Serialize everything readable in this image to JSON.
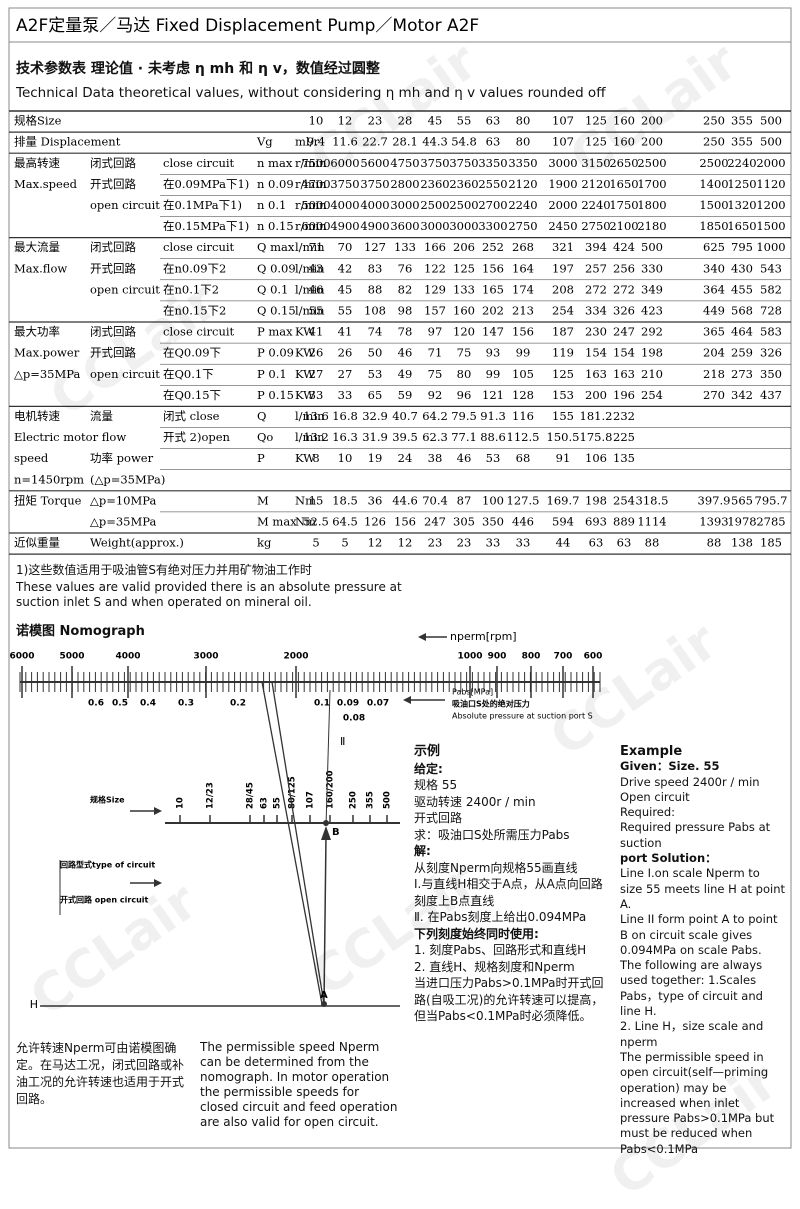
{
  "header": {
    "title": "A2F定量泵／马达  Fixed Displacement Pump／Motor A2F"
  },
  "intro": {
    "title_cn": "技术参数表  理论值 · 未考虑 η mh 和 η v，数值经过圆整",
    "title_en": "Technical Data theoretical values, without considering η mh and η v values rounded off"
  },
  "table": {
    "rows": [
      {
        "label": "规格Size",
        "values": [
          "10",
          "12",
          "23",
          "28",
          "45",
          "55",
          "63",
          "80",
          "107",
          "125",
          "160",
          "200",
          "250",
          "355",
          "500"
        ]
      },
      {
        "label": "排量 Displacement",
        "symbol": "Vg",
        "unit": "ml/r",
        "values": [
          "9.4",
          "11.6",
          "22.7",
          "28.1",
          "44.3",
          "54.8",
          "63",
          "80",
          "107",
          "125",
          "160",
          "200",
          "250",
          "355",
          "500"
        ]
      },
      {
        "label": "最高转速",
        "sub": "闭式回路",
        "desc": "close circuit",
        "symbol": "n max",
        "unit": "r/min",
        "values": [
          "7500",
          "6000",
          "5600",
          "4750",
          "3750",
          "3750",
          "3350",
          "3350",
          "3000",
          "3150",
          "2650",
          "2500",
          "2500",
          "2240",
          "2000"
        ]
      },
      {
        "label": "Max.speed",
        "sub": "开式回路",
        "desc": "在0.09MPa下1)",
        "symbol": "n 0.09",
        "unit": "r/min",
        "values": [
          "4700",
          "3750",
          "3750",
          "2800",
          "2360",
          "2360",
          "2550",
          "2120",
          "1900",
          "2120",
          "1650",
          "1700",
          "1400",
          "1250",
          "1120"
        ]
      },
      {
        "sub": "open circuit",
        "desc": "在0.1MPa下1)",
        "symbol": "n 0.1",
        "unit": "r/min",
        "values": [
          "5000",
          "4000",
          "4000",
          "3000",
          "2500",
          "2500",
          "2700",
          "2240",
          "2000",
          "2240",
          "1750",
          "1800",
          "1500",
          "1320",
          "1200"
        ]
      },
      {
        "desc": "在0.15MPa下1)",
        "symbol": "n 0.15",
        "unit": "r/min",
        "values": [
          "6000",
          "4900",
          "4900",
          "3600",
          "3000",
          "3000",
          "3300",
          "2750",
          "2450",
          "2750",
          "2100",
          "2180",
          "1850",
          "1650",
          "1500"
        ]
      },
      {
        "label": "最大流量",
        "sub": "闭式回路",
        "desc": "close circuit",
        "symbol": "Q max",
        "unit": "l/min",
        "values": [
          "71",
          "70",
          "127",
          "133",
          "166",
          "206",
          "252",
          "268",
          "321",
          "394",
          "424",
          "500",
          "625",
          "795",
          "1000"
        ]
      },
      {
        "label": "Max.flow",
        "sub": "开式回路",
        "desc": "在n0.09下2",
        "symbol": "Q 0.09",
        "unit": "l/min",
        "values": [
          "43",
          "42",
          "83",
          "76",
          "122",
          "125",
          "156",
          "164",
          "197",
          "257",
          "256",
          "330",
          "340",
          "430",
          "543"
        ]
      },
      {
        "sub": "open circuit",
        "desc": "在n0.1下2",
        "symbol": "Q 0.1",
        "unit": "l/min",
        "values": [
          "46",
          "45",
          "88",
          "82",
          "129",
          "133",
          "165",
          "174",
          "208",
          "272",
          "272",
          "349",
          "364",
          "455",
          "582"
        ]
      },
      {
        "desc": "在n0.15下2",
        "symbol": "Q 0.15",
        "unit": "l/min",
        "values": [
          "55",
          "55",
          "108",
          "98",
          "157",
          "160",
          "202",
          "213",
          "254",
          "334",
          "326",
          "423",
          "449",
          "568",
          "728"
        ]
      },
      {
        "label": "最大功率",
        "sub": "闭式回路",
        "desc": "close circuit",
        "symbol": "P max",
        "unit": "KW",
        "values": [
          "41",
          "41",
          "74",
          "78",
          "97",
          "120",
          "147",
          "156",
          "187",
          "230",
          "247",
          "292",
          "365",
          "464",
          "583"
        ]
      },
      {
        "label": "Max.power",
        "sub": "开式回路",
        "desc": "在Q0.09下",
        "symbol": "P 0.09",
        "unit": "KW",
        "values": [
          "26",
          "26",
          "50",
          "46",
          "71",
          "75",
          "93",
          "99",
          "119",
          "154",
          "154",
          "198",
          "204",
          "259",
          "326"
        ]
      },
      {
        "label": "△p=35MPa",
        "sub": "open circuit",
        "desc": "在Q0.1下",
        "symbol": "P 0.1",
        "unit": "KW",
        "values": [
          "27",
          "27",
          "53",
          "49",
          "75",
          "80",
          "99",
          "105",
          "125",
          "163",
          "163",
          "210",
          "218",
          "273",
          "350"
        ]
      },
      {
        "desc": "在Q0.15下",
        "symbol": "P 0.15",
        "unit": "KW",
        "values": [
          "33",
          "33",
          "65",
          "59",
          "92",
          "96",
          "121",
          "128",
          "153",
          "200",
          "196",
          "254",
          "270",
          "342",
          "437"
        ]
      },
      {
        "label": "电机转速",
        "sub": "流量",
        "desc": "闭式 close",
        "symbol": "Q",
        "unit": "l/min",
        "values": [
          "13.6",
          "16.8",
          "32.9",
          "40.7",
          "64.2",
          "79.5",
          "91.3",
          "116",
          "155",
          "181.2",
          "232"
        ]
      },
      {
        "label": "Electric motor flow",
        "desc": "开式 2)open",
        "symbol": "Qo",
        "unit": "l/min",
        "values": [
          "13.2",
          "16.3",
          "31.9",
          "39.5",
          "62.3",
          "77.1",
          "88.6",
          "112.5",
          "150.5",
          "175.8",
          "225"
        ]
      },
      {
        "label": "speed",
        "sub": "功率 power",
        "symbol": "P",
        "unit": "KW",
        "values": [
          "8",
          "10",
          "19",
          "24",
          "38",
          "46",
          "53",
          "68",
          "91",
          "106",
          "135"
        ]
      },
      {
        "label": "n=1450rpm",
        "sub": "(△p=35MPa)"
      },
      {
        "label": "扭矩 Torque",
        "sub": "△p=10MPa",
        "symbol": "M",
        "unit": "Nm",
        "values": [
          "15",
          "18.5",
          "36",
          "44.6",
          "70.4",
          "87",
          "100",
          "127.5",
          "169.7",
          "198",
          "254",
          "318.5",
          "397.9",
          "565",
          "795.7"
        ]
      },
      {
        "sub": "△p=35MPa",
        "symbol": "M max",
        "unit": "Nm",
        "values": [
          "52.5",
          "64.5",
          "126",
          "156",
          "247",
          "305",
          "350",
          "446",
          "594",
          "693",
          "889",
          "1114",
          "1393",
          "1978",
          "2785"
        ]
      },
      {
        "label": "近似重量",
        "sub": "Weight(approx.)",
        "symbol": "kg",
        "values": [
          "5",
          "5",
          "12",
          "12",
          "23",
          "23",
          "33",
          "33",
          "44",
          "63",
          "63",
          "88",
          "88",
          "138",
          "185"
        ]
      }
    ]
  },
  "footnote": {
    "cn": "1)这些数值适用于吸油管S有绝对压力并用矿物油工作时",
    "en": "These values are valid provided there is an absolute pressure at suction inlet S and when operated on mineral oil."
  },
  "nomograph": {
    "title": "诺模图 Nomograph",
    "speed_label": "nperm[rpm]",
    "speed_ticks": [
      "6000",
      "5000",
      "4000",
      "3000",
      "2000",
      "1000",
      "900",
      "800",
      "700",
      "600"
    ],
    "pressure_ticks": [
      "0.6",
      "0.5",
      "0.4",
      "0.3",
      "0.2",
      "0.1",
      "0.09",
      "0.07",
      "0.08"
    ],
    "pressure_label": "Pabs[MPa]",
    "pressure_label_cn": "吸油口S处的绝对压力",
    "pressure_label_en": "Absolute pressure at suction port S",
    "line_ii": "Ⅱ",
    "size_label": "规格Size",
    "size_ticks": [
      "10",
      "12/23",
      "28/45",
      "63",
      "55",
      "80/125",
      "107",
      "160/200",
      "250",
      "355",
      "500"
    ],
    "circuit_label": "回路型式type of circuit",
    "open_label": "开式回路  open circuit",
    "line_h": "H",
    "point_a": "A",
    "point_b": "B"
  },
  "example_cn": {
    "lines": [
      "示例",
      "给定:",
      "规格 55",
      "驱动转速 2400r / min",
      "开式回路",
      "求：吸油口S处所需压力Pabs",
      "解:",
      "从刻度Nperm向规格55画直线",
      "I.与直线H相交于A点，从A点向回路刻度上B点直线",
      "Ⅱ. 在Pabs刻度上给出0.094MPa",
      "下列刻度始终同时使用:",
      "1. 刻度Pabs、回路形式和直线H",
      "2. 直线H、规格刻度和Nperm",
      "当进口压力Pabs>0.1MPa时开式回路(自吸工况)的允许转速可以提高，但当Pabs<0.1MPa时必须降低。"
    ]
  },
  "example_en": {
    "lines": [
      "Example",
      "Given：Size. 55",
      "Drive speed 2400r / min",
      "Open circuit",
      "Required:",
      "Required pressure Pabs at suction",
      "port Solution：",
      "Line I.on scale Nperm to size 55 meets line H at point A.",
      "Line II form point A to point B on circuit scale gives 0.094MPa on scale Pabs.",
      "The following are always used together: 1.Scales Pabs，type of circuit and line H.",
      "2. Line H，size scale and nperm",
      "The permissible speed in open circuit(self—priming operation) may be increased when inlet pressure Pabs>0.1MPa but must be reduced when Pabs<0.1MPa"
    ]
  },
  "bottom": {
    "cn": "允许转速Nperm可由诺模图确定。在马达工况，闭式回路或补油工况的允许转速也适用于开式回路。",
    "en": "The permissible speed Nperm can be determined from the nomograph. In motor operation the permissible speeds for closed circuit and feed operation are also valid for open circuit."
  },
  "watermark": "CCLair"
}
